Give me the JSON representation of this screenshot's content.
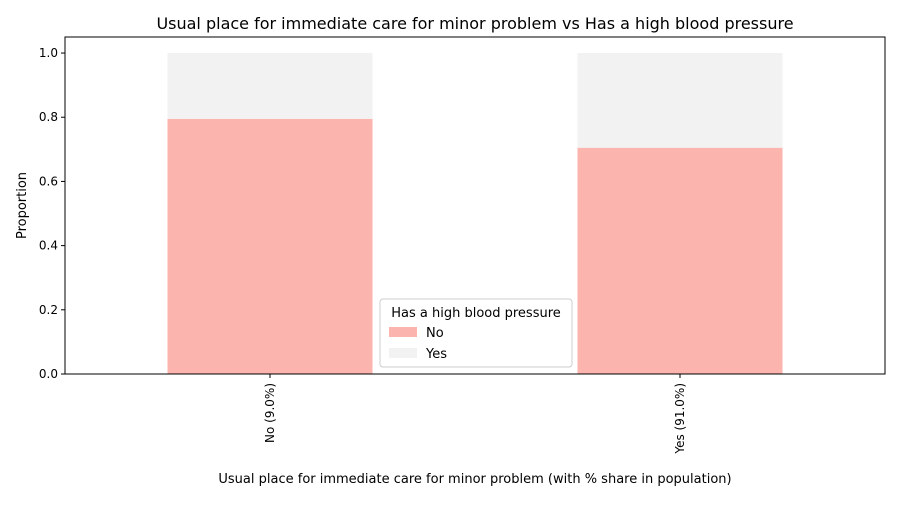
{
  "chart_data": {
    "type": "bar",
    "stacked": true,
    "title": "Usual place for immediate care for minor problem vs Has a high blood pressure",
    "xlabel": "Usual place for immediate care for minor problem (with % share in population)",
    "ylabel": "Proportion",
    "categories": [
      "No (9.0%)",
      "Yes (91.0%)"
    ],
    "series": [
      {
        "name": "No",
        "values": [
          0.795,
          0.705
        ],
        "color": "#fbb4ae"
      },
      {
        "name": "Yes",
        "values": [
          0.205,
          0.295
        ],
        "color": "#f2f2f2"
      }
    ],
    "ylim": [
      0,
      1.05
    ],
    "yticks": [
      0.0,
      0.2,
      0.4,
      0.6,
      0.8,
      1.0
    ],
    "ytick_labels": [
      "0.0",
      "0.2",
      "0.4",
      "0.6",
      "0.8",
      "1.0"
    ],
    "grid": false,
    "legend": {
      "title": "Has a high blood pressure",
      "placement": "bottom-center"
    }
  }
}
